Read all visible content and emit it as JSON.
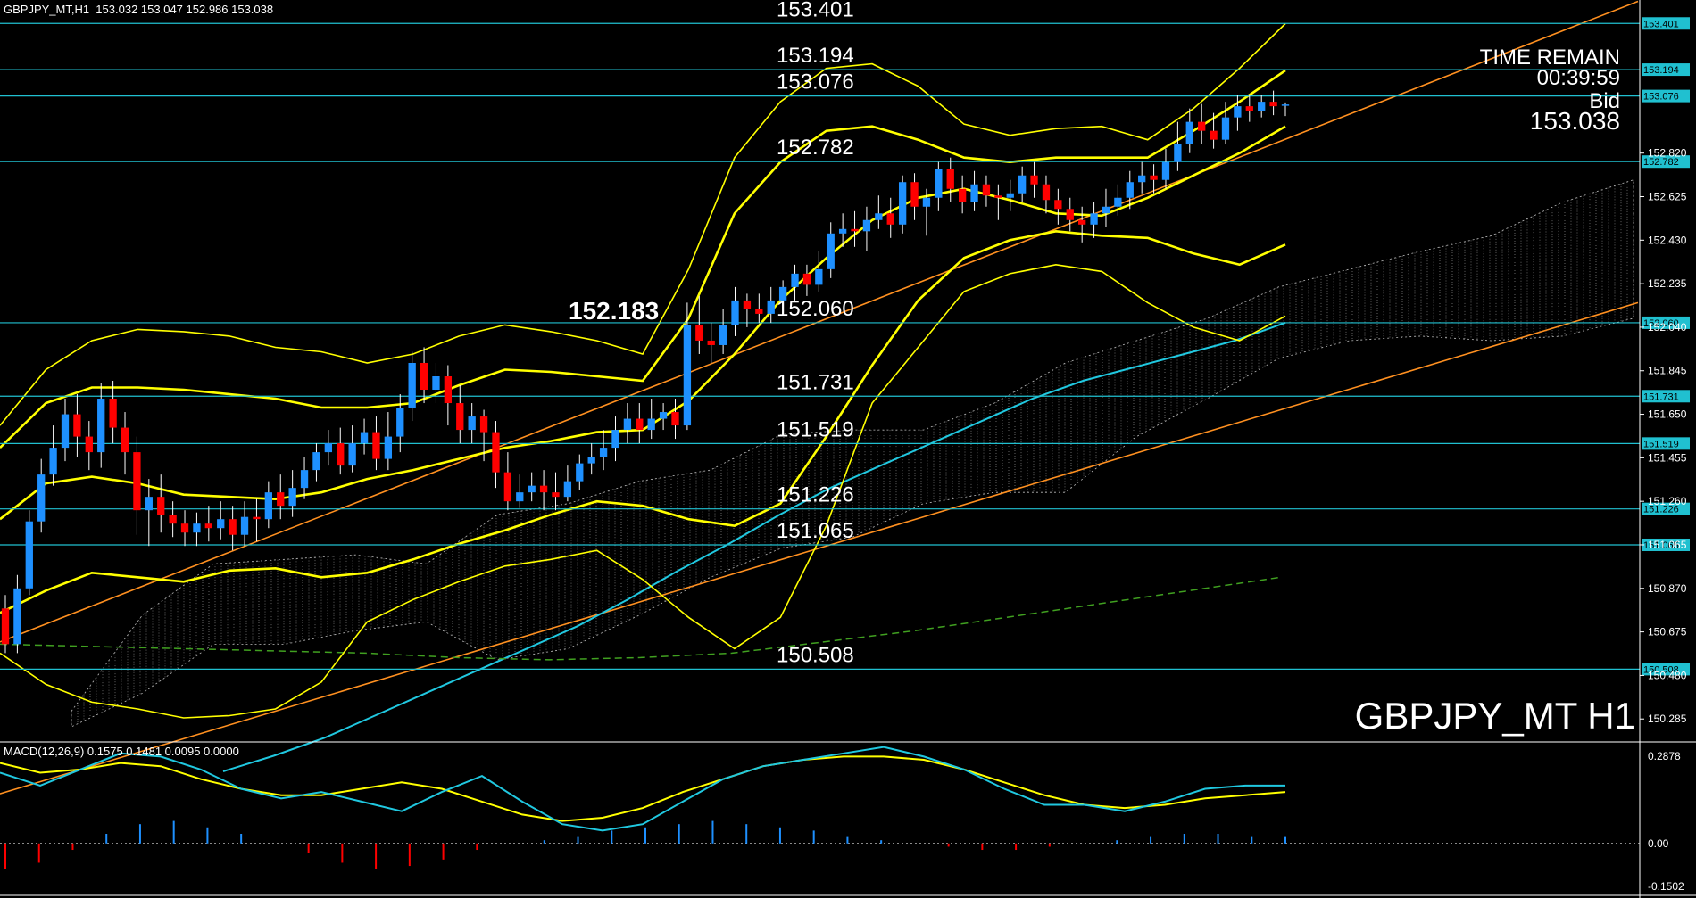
{
  "header": {
    "symbol_info": "GBPJPY_MT,H1  153.032 153.047 152.986 153.038",
    "watermark": "GBPJPY_MT H1"
  },
  "info_panel": {
    "time_remain_label": "TIME REMAIN",
    "time_remain_value": "00:39:59",
    "bid_label": "Bid",
    "bid_value": "153.038"
  },
  "macd_panel": {
    "label": "MACD(12,26,9) 0.1575 0.1481 0.0095 0.0000",
    "axis_labels": [
      "0.2878",
      "0.00",
      "-0.1502"
    ]
  },
  "colors": {
    "background": "#000000",
    "up_candle": "#1e90ff",
    "down_candle": "#ff0000",
    "bollinger": "#ffff00",
    "level_line": "#20c0d0",
    "trendline": "#ff9020",
    "ema_cyan": "#20c8e0",
    "ma_green": "#40a020",
    "cloud": "#bbbbbb",
    "macd_main": "#20c8e0",
    "macd_signal": "#ffff00"
  },
  "chart_data": {
    "type": "candlestick",
    "symbol": "GBPJPY_MT",
    "timeframe": "H1",
    "ylim": [
      150.19,
      153.45
    ],
    "price_axis_ticks": [
      "152.820",
      "152.625",
      "152.430",
      "152.235",
      "152.040",
      "151.845",
      "151.650",
      "151.455",
      "151.260",
      "151.065",
      "150.870",
      "150.675",
      "150.480",
      "150.285"
    ],
    "levels": [
      {
        "value": 153.401,
        "label": "153.401",
        "tag": "153.401"
      },
      {
        "value": 153.194,
        "label": "153.194",
        "tag": "153.194"
      },
      {
        "value": 153.076,
        "label": "153.076",
        "tag": "153.076"
      },
      {
        "value": 152.782,
        "label": "152.782",
        "tag": "152.782"
      },
      {
        "value": 152.06,
        "label": "152.060",
        "tag": "152.060"
      },
      {
        "value": 151.731,
        "label": "151.731",
        "tag": "151.731"
      },
      {
        "value": 151.519,
        "label": "151.519",
        "tag": "151.519"
      },
      {
        "value": 151.226,
        "label": "151.226",
        "tag": "151.226"
      },
      {
        "value": 151.065,
        "label": "151.065",
        "tag": "151.065"
      },
      {
        "value": 150.508,
        "label": "150.508",
        "tag": "150.508"
      }
    ],
    "annotation": {
      "label": "152.183",
      "value": 152.06
    },
    "candles": [
      [
        150.78,
        150.62,
        150.84,
        150.58
      ],
      [
        150.62,
        150.87,
        150.93,
        150.58
      ],
      [
        150.87,
        151.17,
        151.22,
        150.84
      ],
      [
        151.17,
        151.38,
        151.45,
        151.12
      ],
      [
        151.38,
        151.5,
        151.6,
        151.33
      ],
      [
        151.5,
        151.65,
        151.72,
        151.44
      ],
      [
        151.65,
        151.55,
        151.74,
        151.46
      ],
      [
        151.55,
        151.48,
        151.62,
        151.4
      ],
      [
        151.48,
        151.72,
        151.79,
        151.41
      ],
      [
        151.72,
        151.59,
        151.8,
        151.52
      ],
      [
        151.59,
        151.48,
        151.66,
        151.38
      ],
      [
        151.48,
        151.22,
        151.55,
        151.11
      ],
      [
        151.22,
        151.28,
        151.36,
        151.06
      ],
      [
        151.28,
        151.2,
        151.38,
        151.12
      ],
      [
        151.2,
        151.16,
        151.26,
        151.1
      ],
      [
        151.16,
        151.12,
        151.22,
        151.06
      ],
      [
        151.12,
        151.16,
        151.21,
        151.06
      ],
      [
        151.16,
        151.14,
        151.24,
        151.08
      ],
      [
        151.14,
        151.18,
        151.26,
        151.09
      ],
      [
        151.18,
        151.11,
        151.24,
        151.04
      ],
      [
        151.11,
        151.19,
        151.26,
        151.06
      ],
      [
        151.19,
        151.18,
        151.27,
        151.08
      ],
      [
        151.18,
        151.3,
        151.35,
        151.14
      ],
      [
        151.3,
        151.24,
        151.38,
        151.18
      ],
      [
        151.24,
        151.32,
        151.4,
        151.19
      ],
      [
        151.32,
        151.4,
        151.46,
        151.27
      ],
      [
        151.4,
        151.48,
        151.52,
        151.35
      ],
      [
        151.48,
        151.52,
        151.58,
        151.42
      ],
      [
        151.52,
        151.42,
        151.59,
        151.38
      ],
      [
        151.42,
        151.52,
        151.6,
        151.39
      ],
      [
        151.52,
        151.57,
        151.63,
        151.47
      ],
      [
        151.57,
        151.45,
        151.64,
        151.4
      ],
      [
        151.45,
        151.55,
        151.66,
        151.4
      ],
      [
        151.55,
        151.68,
        151.74,
        151.48
      ],
      [
        151.68,
        151.88,
        151.93,
        151.62
      ],
      [
        151.88,
        151.76,
        151.95,
        151.7
      ],
      [
        151.76,
        151.82,
        151.88,
        151.7
      ],
      [
        151.82,
        151.7,
        151.87,
        151.6
      ],
      [
        151.7,
        151.58,
        151.78,
        151.52
      ],
      [
        151.58,
        151.64,
        151.7,
        151.52
      ],
      [
        151.64,
        151.57,
        151.67,
        151.44
      ],
      [
        151.57,
        151.39,
        151.62,
        151.32
      ],
      [
        151.39,
        151.26,
        151.48,
        151.22
      ],
      [
        151.26,
        151.3,
        151.38,
        151.23
      ],
      [
        151.3,
        151.33,
        151.39,
        151.26
      ],
      [
        151.33,
        151.3,
        151.4,
        151.22
      ],
      [
        151.3,
        151.28,
        151.39,
        151.22
      ],
      [
        151.28,
        151.35,
        151.42,
        151.26
      ],
      [
        151.35,
        151.43,
        151.47,
        151.31
      ],
      [
        151.43,
        151.46,
        151.52,
        151.38
      ],
      [
        151.46,
        151.5,
        151.58,
        151.4
      ],
      [
        151.5,
        151.58,
        151.64,
        151.44
      ],
      [
        151.58,
        151.63,
        151.7,
        151.52
      ],
      [
        151.63,
        151.58,
        151.7,
        151.52
      ],
      [
        151.58,
        151.63,
        151.72,
        151.54
      ],
      [
        151.63,
        151.66,
        151.7,
        151.58
      ],
      [
        151.66,
        151.6,
        151.72,
        151.54
      ],
      [
        151.6,
        152.05,
        152.15,
        151.58
      ],
      [
        152.05,
        151.98,
        152.18,
        151.92
      ],
      [
        151.98,
        151.96,
        152.06,
        151.88
      ],
      [
        151.96,
        152.05,
        152.12,
        151.92
      ],
      [
        152.05,
        152.16,
        152.22,
        152.0
      ],
      [
        152.16,
        152.12,
        152.19,
        152.04
      ],
      [
        152.12,
        152.1,
        152.19,
        152.06
      ],
      [
        152.1,
        152.16,
        152.22,
        152.06
      ],
      [
        152.16,
        152.22,
        152.25,
        152.12
      ],
      [
        152.22,
        152.28,
        152.32,
        152.16
      ],
      [
        152.28,
        152.23,
        152.32,
        152.18
      ],
      [
        152.23,
        152.3,
        152.38,
        152.2
      ],
      [
        152.3,
        152.46,
        152.51,
        152.26
      ],
      [
        152.46,
        152.48,
        152.55,
        152.4
      ],
      [
        152.48,
        152.47,
        152.56,
        152.4
      ],
      [
        152.47,
        152.52,
        152.58,
        152.38
      ],
      [
        152.52,
        152.55,
        152.63,
        152.48
      ],
      [
        152.55,
        152.5,
        152.62,
        152.44
      ],
      [
        152.5,
        152.69,
        152.72,
        152.46
      ],
      [
        152.69,
        152.58,
        152.73,
        152.52
      ],
      [
        152.58,
        152.62,
        152.66,
        152.45
      ],
      [
        152.62,
        152.75,
        152.78,
        152.56
      ],
      [
        152.75,
        152.66,
        152.8,
        152.6
      ],
      [
        152.66,
        152.6,
        152.72,
        152.55
      ],
      [
        152.6,
        152.68,
        152.74,
        152.56
      ],
      [
        152.68,
        152.63,
        152.72,
        152.58
      ],
      [
        152.63,
        152.62,
        152.68,
        152.52
      ],
      [
        152.62,
        152.64,
        152.7,
        152.56
      ],
      [
        152.64,
        152.72,
        152.76,
        152.6
      ],
      [
        152.72,
        152.68,
        152.78,
        152.62
      ],
      [
        152.68,
        152.61,
        152.72,
        152.55
      ],
      [
        152.61,
        152.57,
        152.66,
        152.5
      ],
      [
        152.57,
        152.52,
        152.62,
        152.47
      ],
      [
        152.52,
        152.5,
        152.58,
        152.42
      ],
      [
        152.5,
        152.55,
        152.6,
        152.44
      ],
      [
        152.55,
        152.58,
        152.66,
        152.49
      ],
      [
        152.58,
        152.62,
        152.68,
        152.54
      ],
      [
        152.62,
        152.69,
        152.74,
        152.57
      ],
      [
        152.69,
        152.72,
        152.78,
        152.64
      ],
      [
        152.72,
        152.7,
        152.77,
        152.64
      ],
      [
        152.7,
        152.78,
        152.84,
        152.66
      ],
      [
        152.78,
        152.86,
        152.96,
        152.74
      ],
      [
        152.86,
        152.96,
        153.02,
        152.82
      ],
      [
        152.96,
        152.92,
        153.04,
        152.86
      ],
      [
        152.92,
        152.88,
        153.0,
        152.84
      ],
      [
        152.88,
        152.98,
        153.05,
        152.86
      ],
      [
        152.98,
        153.03,
        153.08,
        152.92
      ],
      [
        153.03,
        153.01,
        153.08,
        152.96
      ],
      [
        153.01,
        153.05,
        153.08,
        152.98
      ],
      [
        153.05,
        153.03,
        153.1,
        152.99
      ],
      [
        153.032,
        153.038,
        153.047,
        152.986
      ]
    ],
    "bollinger": {
      "outer_upper": [
        151.6,
        151.85,
        151.98,
        152.03,
        152.02,
        152.0,
        151.95,
        151.93,
        151.88,
        151.92,
        152.0,
        152.05,
        152.02,
        151.98,
        151.92,
        152.3,
        152.8,
        153.05,
        153.2,
        153.22,
        153.12,
        152.95,
        152.9,
        152.93,
        152.94,
        152.88,
        153.02,
        153.2,
        153.4
      ],
      "inner_upper": [
        151.5,
        151.7,
        151.77,
        151.77,
        151.76,
        151.74,
        151.72,
        151.68,
        151.68,
        151.7,
        151.78,
        151.85,
        151.84,
        151.82,
        151.8,
        152.08,
        152.55,
        152.78,
        152.92,
        152.94,
        152.88,
        152.8,
        152.78,
        152.8,
        152.8,
        152.8,
        152.92,
        153.05,
        153.19
      ],
      "middle": [
        151.18,
        151.34,
        151.37,
        151.34,
        151.29,
        151.28,
        151.27,
        151.3,
        151.36,
        151.4,
        151.45,
        151.5,
        151.53,
        151.57,
        151.58,
        151.71,
        151.92,
        152.16,
        152.35,
        152.52,
        152.62,
        152.66,
        152.61,
        152.55,
        152.54,
        152.62,
        152.72,
        152.82,
        152.94
      ],
      "inner_lower": [
        150.76,
        150.86,
        150.94,
        150.92,
        150.9,
        150.95,
        150.96,
        150.92,
        150.94,
        151.0,
        151.07,
        151.13,
        151.2,
        151.26,
        151.24,
        151.18,
        151.15,
        151.25,
        151.55,
        151.87,
        152.16,
        152.35,
        152.43,
        152.47,
        152.45,
        152.44,
        152.37,
        152.32,
        152.41
      ],
      "outer_lower": [
        150.58,
        150.44,
        150.36,
        150.33,
        150.29,
        150.3,
        150.33,
        150.45,
        150.72,
        150.82,
        150.9,
        150.97,
        151.0,
        151.04,
        150.91,
        150.74,
        150.6,
        150.74,
        151.15,
        151.7,
        151.95,
        152.2,
        152.28,
        152.32,
        152.29,
        152.15,
        152.04,
        151.98,
        152.09
      ]
    },
    "ema_cyan": [
      150.05,
      150.12,
      150.2,
      150.3,
      150.4,
      150.5,
      150.6,
      150.7,
      150.82,
      150.95,
      151.07,
      151.2,
      151.32,
      151.42,
      151.52,
      151.62,
      151.72,
      151.8,
      151.86,
      151.92,
      151.98,
      152.06
    ],
    "ma_green": [
      150.62,
      150.61,
      150.6,
      150.59,
      150.58,
      150.56,
      150.55,
      150.56,
      150.58,
      150.63,
      150.68,
      150.74,
      150.8,
      150.86,
      150.92
    ],
    "cloud_upper": [
      150.32,
      150.75,
      150.98,
      151.0,
      151.02,
      150.98,
      151.2,
      151.25,
      151.35,
      151.4,
      151.56,
      151.58,
      151.58,
      151.7,
      151.88,
      151.98,
      152.08,
      152.22,
      152.3,
      152.38,
      152.45,
      152.6,
      152.7
    ],
    "cloud_lower": [
      150.25,
      150.4,
      150.62,
      150.62,
      150.68,
      150.72,
      150.55,
      150.6,
      150.75,
      150.92,
      151.05,
      151.1,
      151.25,
      151.3,
      151.3,
      151.55,
      151.72,
      151.9,
      151.98,
      152.0,
      151.98,
      152.0,
      152.08
    ],
    "trendlines": [
      {
        "from": 150.63,
        "to": 153.5
      },
      {
        "from": 149.95,
        "to": 152.15
      }
    ],
    "macd": {
      "ylim": [
        -0.1502,
        0.2878
      ],
      "main": [
        0.22,
        0.18,
        0.23,
        0.28,
        0.27,
        0.23,
        0.17,
        0.14,
        0.16,
        0.13,
        0.1,
        0.16,
        0.21,
        0.13,
        0.06,
        0.04,
        0.06,
        0.13,
        0.2,
        0.24,
        0.26,
        0.28,
        0.3,
        0.27,
        0.23,
        0.17,
        0.12,
        0.12,
        0.1,
        0.13,
        0.17,
        0.18,
        0.18
      ],
      "signal": [
        0.25,
        0.22,
        0.23,
        0.25,
        0.24,
        0.2,
        0.17,
        0.15,
        0.15,
        0.17,
        0.19,
        0.17,
        0.13,
        0.09,
        0.07,
        0.08,
        0.11,
        0.16,
        0.2,
        0.24,
        0.26,
        0.27,
        0.27,
        0.26,
        0.23,
        0.19,
        0.15,
        0.12,
        0.11,
        0.12,
        0.14,
        0.15,
        0.16
      ],
      "histogram": [
        -0.08,
        -0.06,
        -0.02,
        0.03,
        0.06,
        0.07,
        0.05,
        0.03,
        0.0,
        -0.03,
        -0.06,
        -0.08,
        -0.07,
        -0.05,
        -0.02,
        0.0,
        0.01,
        0.02,
        0.04,
        0.05,
        0.06,
        0.07,
        0.06,
        0.05,
        0.04,
        0.02,
        0.01,
        0.0,
        -0.01,
        -0.02,
        -0.02,
        -0.01,
        0.0,
        0.01,
        0.02,
        0.03,
        0.03,
        0.02,
        0.02
      ]
    }
  }
}
